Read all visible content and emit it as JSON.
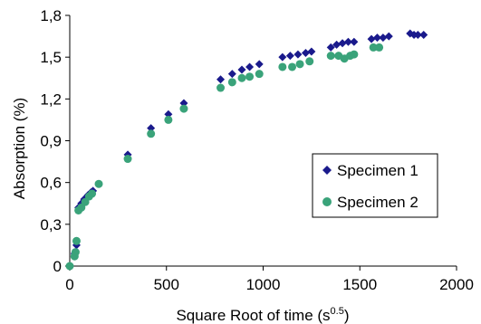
{
  "chart_data": {
    "type": "scatter",
    "xlabel": "Square Root of time (s",
    "xlabel_sup": "0.5",
    "xlabel_end": ")",
    "ylabel": "Absorption (%)",
    "xlim": [
      0,
      2000
    ],
    "ylim": [
      0,
      1.8
    ],
    "x_ticks": [
      0,
      500,
      1000,
      1500,
      2000
    ],
    "x_tick_labels": [
      "0",
      "500",
      "1000",
      "1500",
      "2000"
    ],
    "y_ticks": [
      0,
      0.3,
      0.6,
      0.9,
      1.2,
      1.5,
      1.8
    ],
    "y_tick_labels": [
      "0",
      "0,3",
      "0,6",
      "0,9",
      "1,2",
      "1,5",
      "1,8"
    ],
    "grid": false,
    "legend_position": "right",
    "series": [
      {
        "name": "Specimen 1",
        "marker": "diamond",
        "color": "#1a1a8c",
        "points": [
          [
            0,
            0.0
          ],
          [
            25,
            0.09
          ],
          [
            35,
            0.15
          ],
          [
            45,
            0.42
          ],
          [
            60,
            0.45
          ],
          [
            75,
            0.48
          ],
          [
            85,
            0.49
          ],
          [
            95,
            0.51
          ],
          [
            110,
            0.53
          ],
          [
            120,
            0.54
          ],
          [
            300,
            0.8
          ],
          [
            420,
            0.99
          ],
          [
            510,
            1.09
          ],
          [
            590,
            1.17
          ],
          [
            780,
            1.34
          ],
          [
            840,
            1.38
          ],
          [
            890,
            1.41
          ],
          [
            930,
            1.43
          ],
          [
            980,
            1.45
          ],
          [
            1100,
            1.5
          ],
          [
            1140,
            1.51
          ],
          [
            1180,
            1.52
          ],
          [
            1220,
            1.53
          ],
          [
            1250,
            1.54
          ],
          [
            1350,
            1.57
          ],
          [
            1380,
            1.59
          ],
          [
            1410,
            1.6
          ],
          [
            1440,
            1.61
          ],
          [
            1470,
            1.61
          ],
          [
            1560,
            1.63
          ],
          [
            1590,
            1.64
          ],
          [
            1620,
            1.64
          ],
          [
            1650,
            1.65
          ],
          [
            1760,
            1.67
          ],
          [
            1780,
            1.66
          ],
          [
            1800,
            1.66
          ],
          [
            1830,
            1.66
          ]
        ]
      },
      {
        "name": "Specimen 2",
        "marker": "circle",
        "color": "#3aa37a",
        "points": [
          [
            0,
            0.0
          ],
          [
            25,
            0.07
          ],
          [
            30,
            0.1
          ],
          [
            35,
            0.18
          ],
          [
            45,
            0.4
          ],
          [
            60,
            0.42
          ],
          [
            80,
            0.46
          ],
          [
            100,
            0.5
          ],
          [
            115,
            0.52
          ],
          [
            150,
            0.59
          ],
          [
            300,
            0.77
          ],
          [
            420,
            0.95
          ],
          [
            510,
            1.05
          ],
          [
            590,
            1.13
          ],
          [
            780,
            1.28
          ],
          [
            840,
            1.32
          ],
          [
            890,
            1.35
          ],
          [
            930,
            1.36
          ],
          [
            980,
            1.38
          ],
          [
            1100,
            1.43
          ],
          [
            1150,
            1.43
          ],
          [
            1190,
            1.45
          ],
          [
            1240,
            1.47
          ],
          [
            1350,
            1.51
          ],
          [
            1390,
            1.51
          ],
          [
            1420,
            1.49
          ],
          [
            1450,
            1.51
          ],
          [
            1470,
            1.52
          ],
          [
            1570,
            1.57
          ],
          [
            1600,
            1.57
          ]
        ]
      }
    ]
  }
}
